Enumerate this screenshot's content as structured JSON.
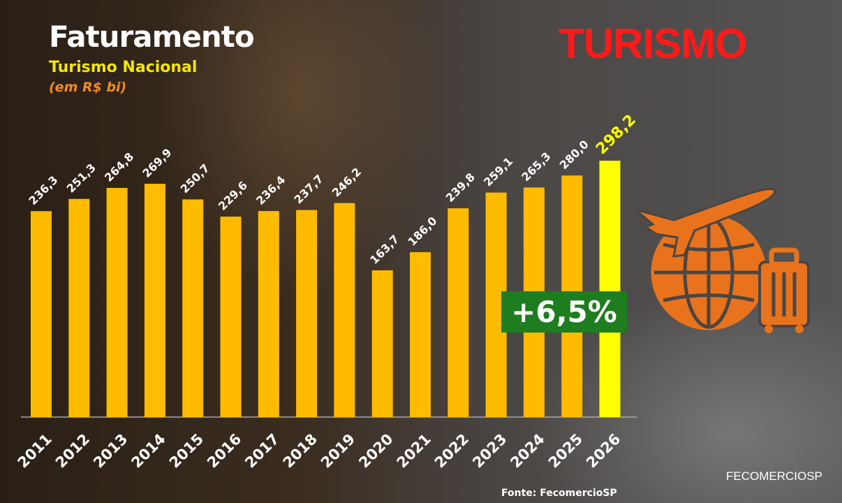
{
  "header": {
    "title": "Faturamento",
    "subtitle": "Turismo Nacional",
    "unit": "(em R$ bi)",
    "brand": "TURISMO"
  },
  "growth_badge": "+6,5%",
  "source": "Fonte: FecomercioSP",
  "logo": "FECOMERCIOSP",
  "colors": {
    "bar": "#ffbb00",
    "highlight_bar": "#ffff00",
    "brand": "#ff1a1a",
    "badge": "#1e7d1e",
    "icon": "#e8731c"
  },
  "icon": "globe-airplane-suitcase-icon",
  "chart_data": {
    "type": "bar",
    "title": "Faturamento",
    "categories": [
      "2011",
      "2012",
      "2013",
      "2014",
      "2015",
      "2016",
      "2017",
      "2018",
      "2019",
      "2020",
      "2021",
      "2022",
      "2023",
      "2024",
      "2025",
      "2026"
    ],
    "values": [
      236.3,
      251.3,
      264.8,
      269.9,
      250.7,
      229.6,
      236.4,
      237.7,
      246.2,
      163.7,
      186.0,
      239.8,
      259.1,
      265.3,
      280.0,
      298.2
    ],
    "data_labels": [
      "236,3",
      "251,3",
      "264,8",
      "269,9",
      "250,7",
      "229,6",
      "236,4",
      "237,7",
      "246,2",
      "163,7",
      "186,0",
      "239,8",
      "259,1",
      "265,3",
      "280,0",
      "298,2"
    ],
    "highlight": "2026",
    "xlabel": "",
    "ylabel": "",
    "grid": false,
    "legend": "none"
  }
}
